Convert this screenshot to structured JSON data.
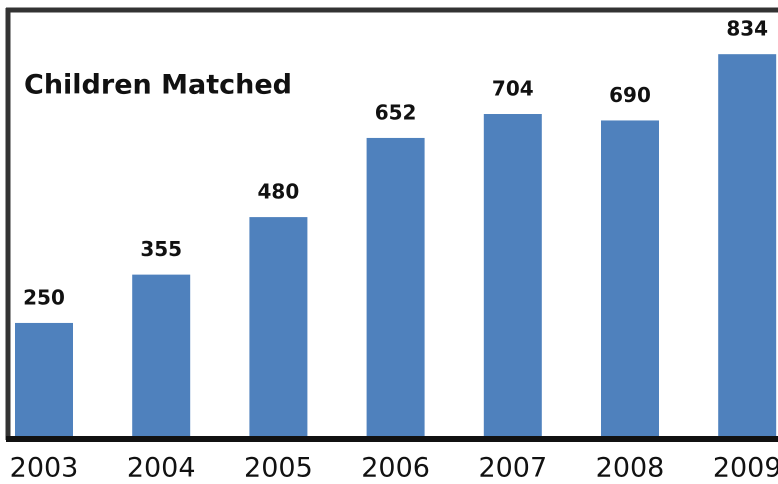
{
  "chart_data": {
    "type": "bar",
    "title": "Children Matched",
    "categories": [
      "2003",
      "2004",
      "2005",
      "2006",
      "2007",
      "2008",
      "2009"
    ],
    "values": [
      250,
      355,
      480,
      652,
      704,
      690,
      834
    ],
    "color": "#4f81bd",
    "ylim": [
      0,
      930
    ]
  }
}
